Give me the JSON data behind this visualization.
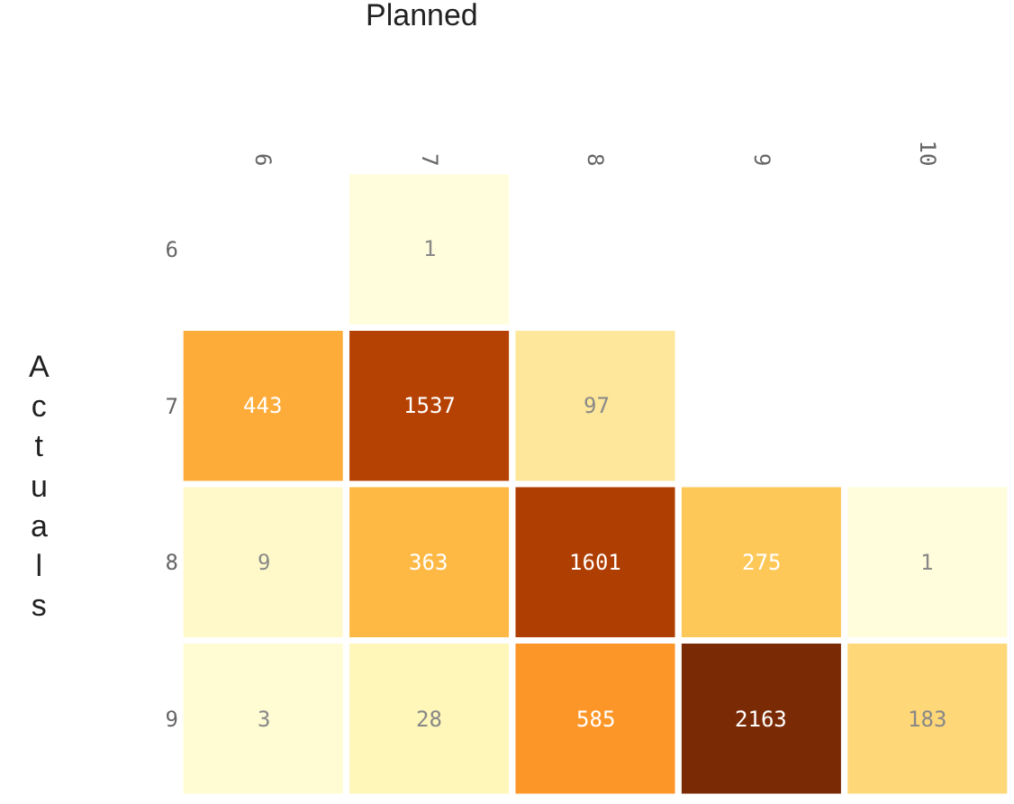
{
  "chart_data": {
    "type": "heatmap",
    "xlabel": "Planned",
    "ylabel": "Actuals",
    "categories": [
      "6",
      "7",
      "8",
      "9",
      "10"
    ],
    "y_categories": [
      "6",
      "7",
      "8",
      "9"
    ],
    "cells": [
      [
        null,
        1,
        null,
        null,
        null
      ],
      [
        443,
        1537,
        97,
        null,
        null
      ],
      [
        9,
        363,
        1601,
        275,
        1
      ],
      [
        3,
        28,
        585,
        2163,
        183
      ]
    ],
    "data_labels": true
  }
}
